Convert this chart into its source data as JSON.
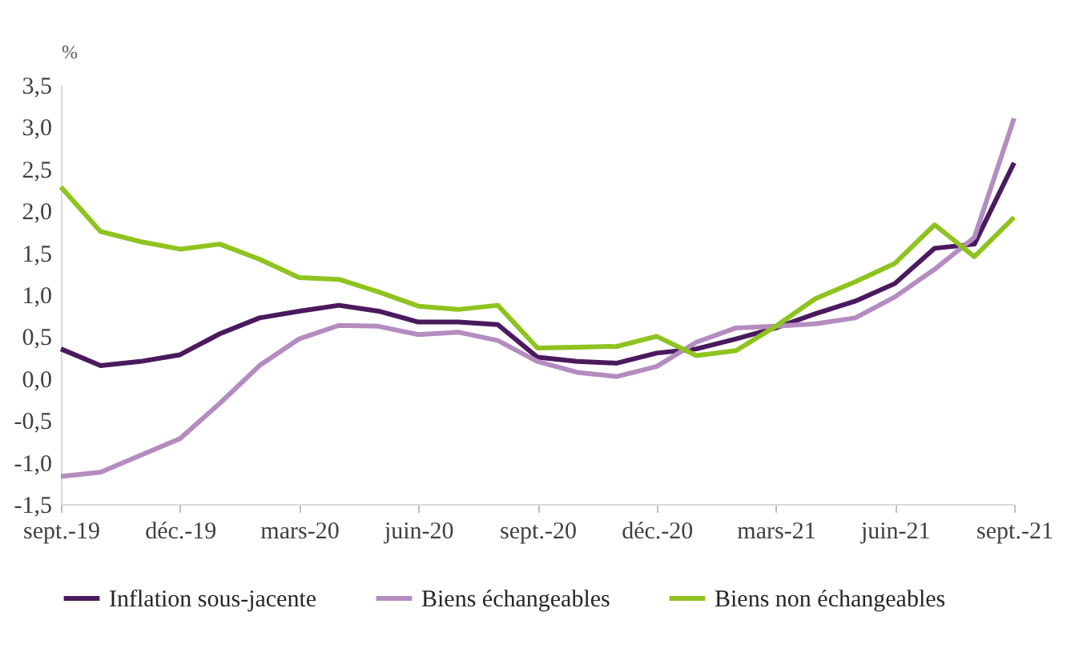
{
  "chart_data": {
    "type": "line",
    "ylabel": "%",
    "categories": [
      "sept.-19",
      null,
      null,
      "déc.-19",
      null,
      null,
      "mars-20",
      null,
      null,
      "juin-20",
      null,
      null,
      "sept.-20",
      null,
      null,
      "déc.-20",
      null,
      null,
      "mars-21",
      null,
      null,
      "juin-21",
      null,
      null,
      "sept.-21"
    ],
    "series": [
      {
        "name": "Inflation sous-jacente",
        "color": "#4b1a5e",
        "values": [
          0.35,
          0.15,
          0.2,
          0.28,
          0.53,
          0.72,
          0.8,
          0.87,
          0.8,
          0.67,
          0.67,
          0.64,
          0.25,
          0.2,
          0.18,
          0.3,
          0.35,
          0.47,
          0.6,
          0.77,
          0.92,
          1.13,
          1.55,
          1.6,
          2.57
        ]
      },
      {
        "name": "Biens échangeables",
        "color": "#b48cc0",
        "values": [
          -1.17,
          -1.12,
          -0.92,
          -0.72,
          -0.3,
          0.15,
          0.47,
          0.63,
          0.62,
          0.52,
          0.55,
          0.45,
          0.2,
          0.07,
          0.02,
          0.14,
          0.43,
          0.6,
          0.62,
          0.65,
          0.72,
          0.97,
          1.3,
          1.68,
          3.1
        ]
      },
      {
        "name": "Biens non échangeables",
        "color": "#8fc31f",
        "values": [
          2.28,
          1.75,
          1.63,
          1.54,
          1.6,
          1.42,
          1.2,
          1.18,
          1.03,
          0.86,
          0.82,
          0.87,
          0.36,
          0.37,
          0.38,
          0.5,
          0.27,
          0.33,
          0.62,
          0.95,
          1.15,
          1.37,
          1.83,
          1.45,
          1.92
        ]
      }
    ],
    "ylim": [
      -1.5,
      3.5
    ],
    "yticks": [
      {
        "value": -1.5,
        "label": "-1,5"
      },
      {
        "value": -1,
        "label": "-1,0"
      },
      {
        "value": -0.5,
        "label": "-0,5"
      },
      {
        "value": 0,
        "label": "0,0"
      },
      {
        "value": 0.5,
        "label": "0,5"
      },
      {
        "value": 1,
        "label": "1,0"
      },
      {
        "value": 1.5,
        "label": "1,5"
      },
      {
        "value": 2,
        "label": "2,0"
      },
      {
        "value": 2.5,
        "label": "2,5"
      },
      {
        "value": 3,
        "label": "3,0"
      },
      {
        "value": 3.5,
        "label": "3,5"
      }
    ],
    "grid": false,
    "legend": "bottom",
    "marker": "none",
    "line_style": "solid"
  }
}
